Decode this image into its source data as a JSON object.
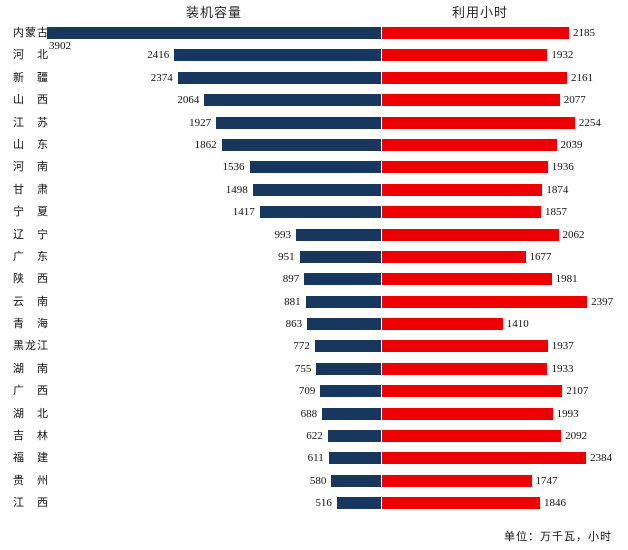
{
  "chart_data": {
    "type": "bar",
    "variant": "tornado",
    "left_title": "装机容量",
    "right_title": "利用小时",
    "unit_note": "单位：万千瓦，小时",
    "categories": [
      "内蒙古",
      "河北",
      "新疆",
      "山西",
      "江苏",
      "山东",
      "河南",
      "甘肃",
      "宁夏",
      "辽宁",
      "广东",
      "陕西",
      "云南",
      "青海",
      "黑龙江",
      "湖南",
      "广西",
      "湖北",
      "吉林",
      "福建",
      "贵州",
      "江西"
    ],
    "series": [
      {
        "name": "装机容量",
        "side": "left",
        "color": "#17375E",
        "values": [
          3902,
          2416,
          2374,
          2064,
          1927,
          1862,
          1536,
          1498,
          1417,
          993,
          951,
          897,
          881,
          863,
          772,
          755,
          709,
          688,
          622,
          611,
          580,
          516
        ]
      },
      {
        "name": "利用小时",
        "side": "right",
        "color": "#EE0000",
        "values": [
          2185,
          1932,
          2161,
          2077,
          2254,
          2039,
          1936,
          1874,
          1857,
          2062,
          1677,
          1981,
          2397,
          1410,
          1937,
          1933,
          2107,
          1993,
          2092,
          2384,
          1747,
          1846
        ]
      }
    ],
    "layout": {
      "gridlines": false,
      "shared_scale": true,
      "axis_max_left": 3902,
      "value_labels": "outside-end",
      "background": "#FFFFFF"
    }
  }
}
